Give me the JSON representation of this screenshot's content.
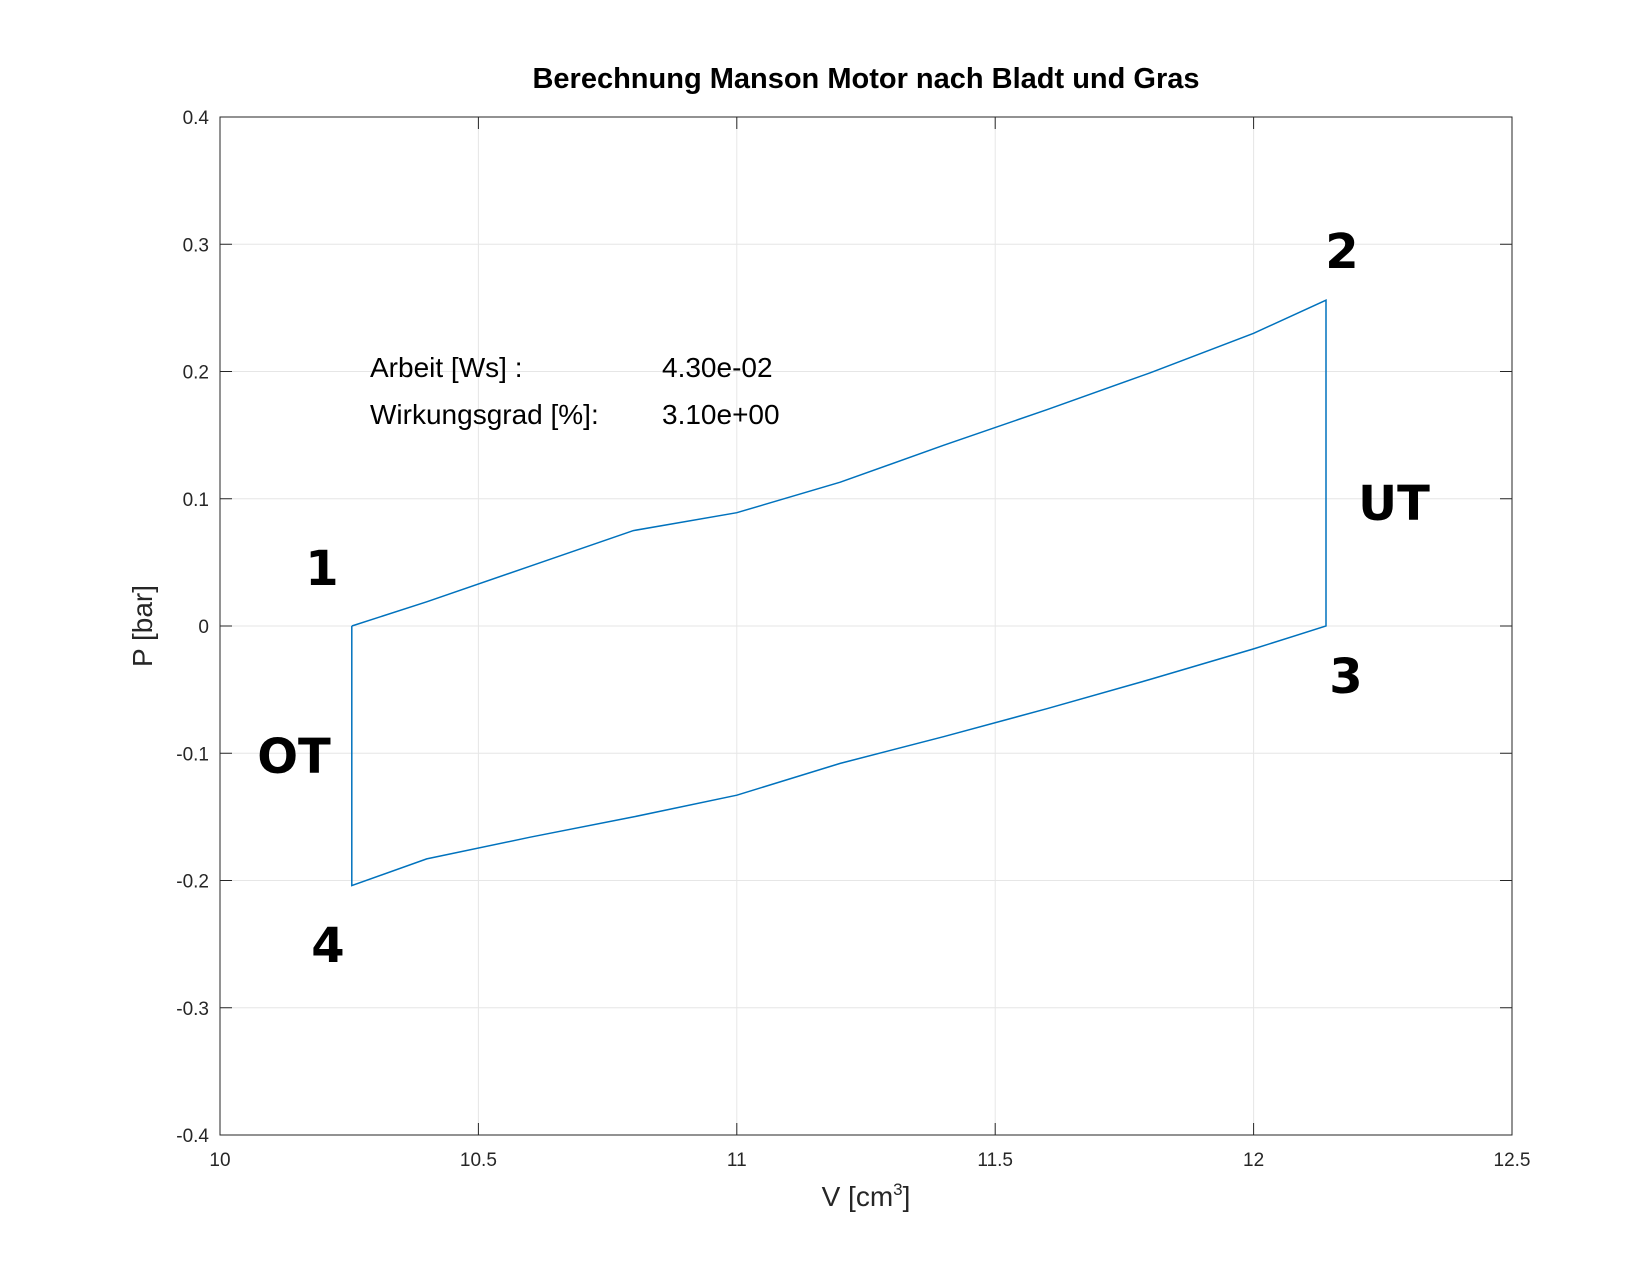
{
  "chart_data": {
    "type": "line",
    "title": "Berechnung Manson Motor nach Bladt und Gras",
    "xlabel": "V [cm",
    "xlabel_sup": "3",
    "xlabel_close": "]",
    "ylabel": "P [bar]",
    "xlim": [
      10,
      12.5
    ],
    "ylim": [
      -0.4,
      0.4
    ],
    "xticks": [
      10,
      10.5,
      11,
      11.5,
      12,
      12.5
    ],
    "xtick_labels": [
      "10",
      "10.5",
      "11",
      "11.5",
      "12",
      "12.5"
    ],
    "yticks": [
      0.4,
      0.3,
      0.2,
      0.1,
      0,
      -0.1,
      -0.2,
      -0.3,
      -0.4
    ],
    "ytick_labels": [
      "0.4",
      "0.3",
      "0.2",
      "0.1",
      "0",
      "-0.1",
      "-0.2",
      "-0.3",
      "-0.4"
    ],
    "grid": true,
    "series": [
      {
        "color": "#0072bd",
        "x": [
          10.255,
          10.4,
          10.6,
          10.8,
          11.0,
          11.2,
          11.4,
          11.6,
          11.8,
          12.0,
          12.14,
          12.14,
          12.0,
          11.8,
          11.6,
          11.4,
          11.2,
          11.0,
          10.8,
          10.6,
          10.4,
          10.255,
          10.255
        ],
        "y": [
          0.0,
          0.019,
          0.047,
          0.075,
          0.089,
          0.113,
          0.142,
          0.17,
          0.199,
          0.23,
          0.256,
          0.0,
          -0.018,
          -0.042,
          -0.065,
          -0.087,
          -0.108,
          -0.133,
          -0.15,
          -0.166,
          -0.183,
          -0.204,
          0.0
        ]
      }
    ],
    "annotations": {
      "arbeit_label": "Arbeit [Ws] :",
      "arbeit_value": "4.30e-02",
      "wirkungsgrad_label": "Wirkungsgrad [%]:",
      "wirkungsgrad_value": "3.10e+00",
      "point_1": "1",
      "point_2": "2",
      "point_3": "3",
      "point_4": "4",
      "ot": "OT",
      "ut": "UT"
    }
  }
}
